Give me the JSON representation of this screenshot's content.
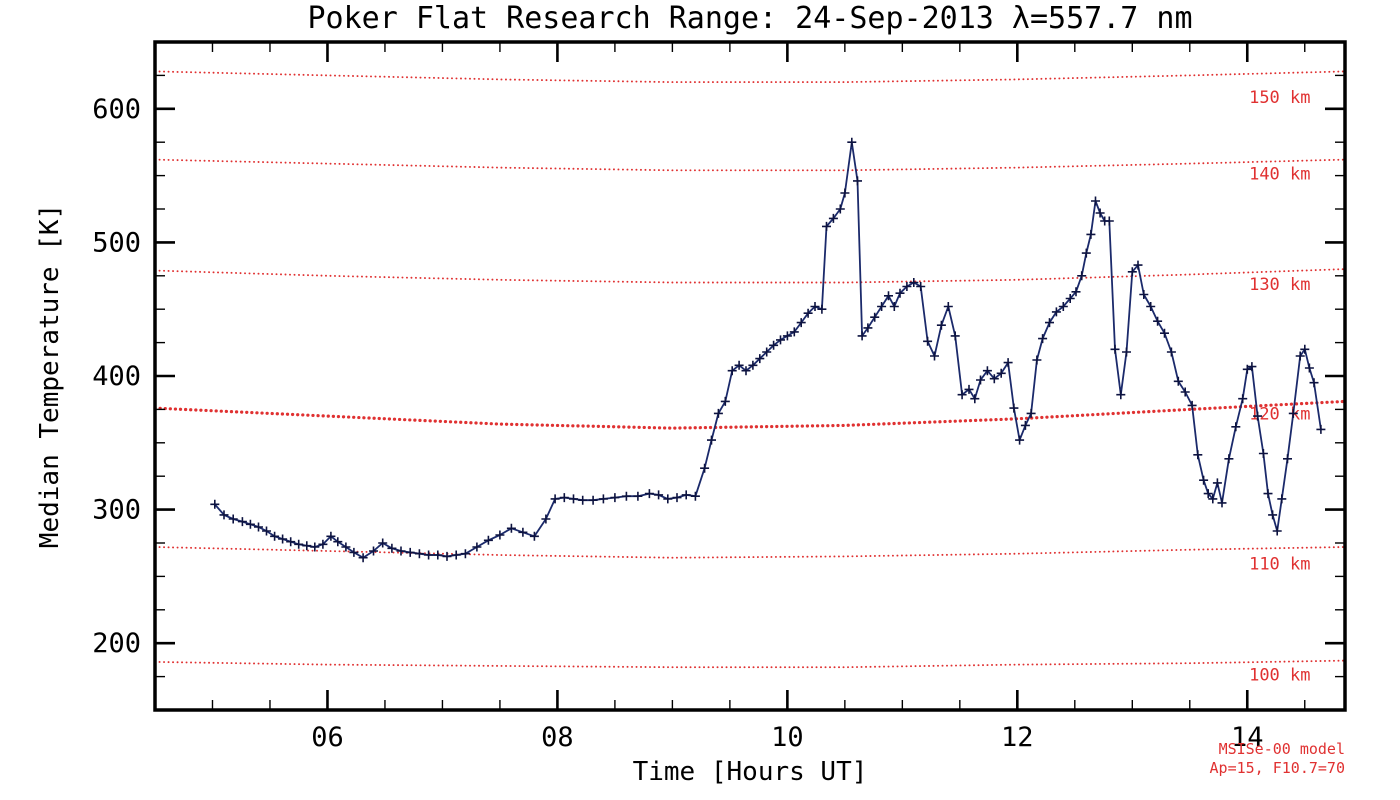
{
  "chart_data": {
    "type": "line",
    "title": "Poker Flat Research Range: 24-Sep-2013 λ=557.7 nm",
    "xlabel": "Time [Hours UT]",
    "ylabel": "Median Temperature [K]",
    "xlim": [
      4.5,
      14.85
    ],
    "ylim": [
      150,
      650
    ],
    "x_major_ticks": [
      6,
      8,
      10,
      12,
      14
    ],
    "x_tick_labels": [
      "06",
      "08",
      "10",
      "12",
      "14"
    ],
    "x_minor_step": 0.5,
    "y_major_ticks": [
      200,
      300,
      400,
      500,
      600
    ],
    "y_tick_labels": [
      "200",
      "300",
      "400",
      "500",
      "600"
    ],
    "y_minor_step": 25,
    "grid": false,
    "legend": "none",
    "colors": {
      "data_line": "#1b2a6b",
      "marker": "#0d1340",
      "model": "#e03131",
      "axis": "#000000",
      "background": "#ffffff"
    },
    "series": [
      {
        "name": "median-temperature",
        "marker": "plus",
        "points": [
          [
            5.02,
            304
          ],
          [
            5.1,
            296
          ],
          [
            5.18,
            293
          ],
          [
            5.26,
            291
          ],
          [
            5.33,
            289
          ],
          [
            5.4,
            287
          ],
          [
            5.47,
            284
          ],
          [
            5.54,
            280
          ],
          [
            5.61,
            278
          ],
          [
            5.68,
            276
          ],
          [
            5.75,
            274
          ],
          [
            5.82,
            273
          ],
          [
            5.89,
            272
          ],
          [
            5.96,
            274
          ],
          [
            6.03,
            280
          ],
          [
            6.09,
            276
          ],
          [
            6.16,
            272
          ],
          [
            6.23,
            268
          ],
          [
            6.31,
            264
          ],
          [
            6.4,
            269
          ],
          [
            6.48,
            275
          ],
          [
            6.56,
            271
          ],
          [
            6.64,
            269
          ],
          [
            6.72,
            268
          ],
          [
            6.8,
            267
          ],
          [
            6.88,
            266
          ],
          [
            6.96,
            266
          ],
          [
            7.04,
            265
          ],
          [
            7.12,
            266
          ],
          [
            7.2,
            267
          ],
          [
            7.3,
            272
          ],
          [
            7.4,
            277
          ],
          [
            7.5,
            281
          ],
          [
            7.6,
            286
          ],
          [
            7.7,
            283
          ],
          [
            7.8,
            280
          ],
          [
            7.9,
            293
          ],
          [
            7.98,
            308
          ],
          [
            8.06,
            309
          ],
          [
            8.14,
            308
          ],
          [
            8.22,
            307
          ],
          [
            8.31,
            307
          ],
          [
            8.4,
            308
          ],
          [
            8.5,
            309
          ],
          [
            8.6,
            310
          ],
          [
            8.7,
            310
          ],
          [
            8.8,
            312
          ],
          [
            8.88,
            311
          ],
          [
            8.96,
            308
          ],
          [
            9.04,
            309
          ],
          [
            9.12,
            311
          ],
          [
            9.2,
            310
          ],
          [
            9.28,
            331
          ],
          [
            9.34,
            352
          ],
          [
            9.4,
            372
          ],
          [
            9.46,
            381
          ],
          [
            9.52,
            404
          ],
          [
            9.58,
            408
          ],
          [
            9.64,
            404
          ],
          [
            9.7,
            408
          ],
          [
            9.76,
            413
          ],
          [
            9.82,
            418
          ],
          [
            9.88,
            423
          ],
          [
            9.94,
            427
          ],
          [
            10.0,
            430
          ],
          [
            10.06,
            433
          ],
          [
            10.12,
            440
          ],
          [
            10.18,
            447
          ],
          [
            10.24,
            452
          ],
          [
            10.3,
            450
          ],
          [
            10.34,
            512
          ],
          [
            10.4,
            518
          ],
          [
            10.46,
            525
          ],
          [
            10.5,
            537
          ],
          [
            10.56,
            575
          ],
          [
            10.61,
            546
          ],
          [
            10.65,
            430
          ],
          [
            10.7,
            436
          ],
          [
            10.76,
            444
          ],
          [
            10.82,
            452
          ],
          [
            10.88,
            460
          ],
          [
            10.93,
            452
          ],
          [
            10.98,
            462
          ],
          [
            11.04,
            467
          ],
          [
            11.1,
            470
          ],
          [
            11.16,
            467
          ],
          [
            11.22,
            426
          ],
          [
            11.28,
            415
          ],
          [
            11.34,
            438
          ],
          [
            11.4,
            452
          ],
          [
            11.46,
            430
          ],
          [
            11.52,
            386
          ],
          [
            11.58,
            390
          ],
          [
            11.63,
            383
          ],
          [
            11.68,
            397
          ],
          [
            11.74,
            404
          ],
          [
            11.8,
            398
          ],
          [
            11.86,
            402
          ],
          [
            11.92,
            410
          ],
          [
            11.97,
            376
          ],
          [
            12.02,
            352
          ],
          [
            12.07,
            363
          ],
          [
            12.12,
            372
          ],
          [
            12.17,
            412
          ],
          [
            12.22,
            428
          ],
          [
            12.28,
            440
          ],
          [
            12.34,
            448
          ],
          [
            12.4,
            452
          ],
          [
            12.46,
            458
          ],
          [
            12.51,
            463
          ],
          [
            12.56,
            475
          ],
          [
            12.6,
            492
          ],
          [
            12.64,
            506
          ],
          [
            12.68,
            531
          ],
          [
            12.72,
            522
          ],
          [
            12.76,
            516
          ],
          [
            12.8,
            516
          ],
          [
            12.85,
            420
          ],
          [
            12.9,
            386
          ],
          [
            12.95,
            418
          ],
          [
            13.0,
            478
          ],
          [
            13.05,
            483
          ],
          [
            13.1,
            461
          ],
          [
            13.16,
            452
          ],
          [
            13.22,
            441
          ],
          [
            13.28,
            432
          ],
          [
            13.34,
            418
          ],
          [
            13.4,
            396
          ],
          [
            13.46,
            388
          ],
          [
            13.52,
            378
          ],
          [
            13.57,
            341
          ],
          [
            13.62,
            322
          ],
          [
            13.66,
            312
          ],
          [
            13.7,
            308
          ],
          [
            13.74,
            320
          ],
          [
            13.78,
            305
          ],
          [
            13.84,
            338
          ],
          [
            13.9,
            362
          ],
          [
            13.96,
            383
          ],
          [
            14.0,
            405
          ],
          [
            14.04,
            407
          ],
          [
            14.09,
            370
          ],
          [
            14.14,
            342
          ],
          [
            14.18,
            312
          ],
          [
            14.22,
            296
          ],
          [
            14.26,
            284
          ],
          [
            14.3,
            308
          ],
          [
            14.35,
            338
          ],
          [
            14.4,
            372
          ],
          [
            14.46,
            415
          ],
          [
            14.5,
            420
          ],
          [
            14.54,
            406
          ],
          [
            14.58,
            395
          ],
          [
            14.64,
            360
          ]
        ]
      }
    ],
    "model_curves": [
      {
        "label": "150 km",
        "label_y": 608,
        "bold": false,
        "points": [
          [
            4.5,
            628
          ],
          [
            6,
            625
          ],
          [
            7.5,
            622
          ],
          [
            9,
            620
          ],
          [
            10.5,
            620
          ],
          [
            12,
            622
          ],
          [
            13.5,
            625
          ],
          [
            14.85,
            628
          ]
        ]
      },
      {
        "label": "140 km",
        "label_y": 551,
        "bold": false,
        "points": [
          [
            4.5,
            562
          ],
          [
            6,
            559
          ],
          [
            7.5,
            556
          ],
          [
            9,
            554
          ],
          [
            10.5,
            554
          ],
          [
            12,
            556
          ],
          [
            13.5,
            559
          ],
          [
            14.85,
            562
          ]
        ]
      },
      {
        "label": "130 km",
        "label_y": 468,
        "bold": false,
        "points": [
          [
            4.5,
            479
          ],
          [
            6,
            475
          ],
          [
            7.5,
            472
          ],
          [
            9,
            470
          ],
          [
            10.5,
            470
          ],
          [
            12,
            472
          ],
          [
            13.5,
            476
          ],
          [
            14.85,
            480
          ]
        ]
      },
      {
        "label": "120 km",
        "label_y": 371,
        "bold": true,
        "points": [
          [
            4.5,
            376
          ],
          [
            6,
            370
          ],
          [
            7.5,
            364
          ],
          [
            9,
            361
          ],
          [
            10.5,
            363
          ],
          [
            12,
            368
          ],
          [
            13.5,
            375
          ],
          [
            14.85,
            381
          ]
        ]
      },
      {
        "label": "110 km",
        "label_y": 259,
        "bold": false,
        "points": [
          [
            4.5,
            272
          ],
          [
            6,
            269
          ],
          [
            7.5,
            266
          ],
          [
            9,
            264
          ],
          [
            10.5,
            265
          ],
          [
            12,
            267
          ],
          [
            13.5,
            270
          ],
          [
            14.85,
            272
          ]
        ]
      },
      {
        "label": "100 km",
        "label_y": 176,
        "bold": false,
        "points": [
          [
            4.5,
            186
          ],
          [
            6,
            184
          ],
          [
            7.5,
            183
          ],
          [
            9,
            182
          ],
          [
            10.5,
            182
          ],
          [
            12,
            184
          ],
          [
            13.5,
            185
          ],
          [
            14.85,
            187
          ]
        ]
      }
    ],
    "model_label_x": 14.55,
    "annotations": [
      "MSISe-00 model",
      "Ap=15, F10.7=70"
    ]
  }
}
